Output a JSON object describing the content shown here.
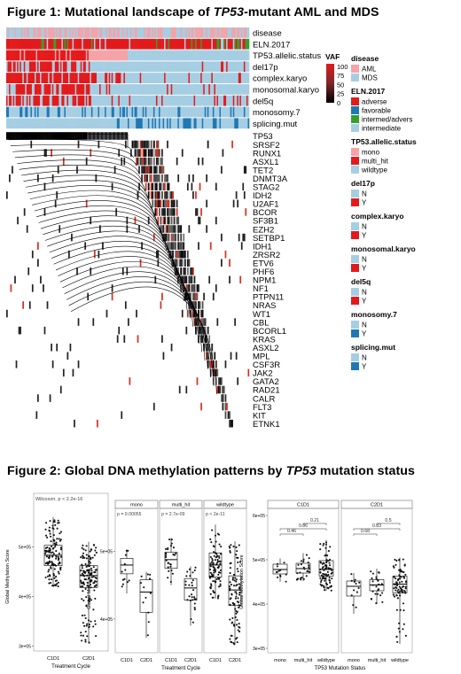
{
  "figure1": {
    "title_prefix": "Figure 1: Mutational landscape of ",
    "title_gene": "TP53",
    "title_suffix": "-mutant AML and MDS",
    "annotation_tracks": [
      "disease",
      "ELN.2017",
      "TP53.allelic.status",
      "del17p",
      "complex.karyo",
      "monosomal.karyo",
      "del5q",
      "monosomy.7",
      "splicing.mut"
    ],
    "genes": [
      "TP53",
      "SRSF2",
      "RUNX1",
      "ASXL1",
      "TET2",
      "DNMT3A",
      "STAG2",
      "IDH2",
      "U2AF1",
      "BCOR",
      "SF3B1",
      "EZH2",
      "SETBP1",
      "IDH1",
      "ZRSR2",
      "ETV6",
      "PHF6",
      "NPM1",
      "NF1",
      "PTPN11",
      "NRAS",
      "WT1",
      "CBL",
      "BCORL1",
      "KRAS",
      "ASXL2",
      "MPL",
      "CSF3R",
      "JAK2",
      "GATA2",
      "RAD21",
      "CALR",
      "FLT3",
      "KIT",
      "ETNK1"
    ],
    "vaf_legend": {
      "title": "VAF",
      "ticks": [
        "100",
        "75",
        "50",
        "25",
        "0"
      ]
    },
    "legends": [
      {
        "title": "disease",
        "items": [
          {
            "label": "AML",
            "color": "#f4a3a8"
          },
          {
            "label": "MDS",
            "color": "#a6cee3"
          }
        ]
      },
      {
        "title": "ELN.2017",
        "items": [
          {
            "label": "adverse",
            "color": "#e31a1c"
          },
          {
            "label": "favorable",
            "color": "#1f78b4"
          },
          {
            "label": "intermed/advers",
            "color": "#33a02c"
          },
          {
            "label": "intermediate",
            "color": "#a6cee3"
          }
        ]
      },
      {
        "title": "TP53.allelic.status",
        "items": [
          {
            "label": "mono",
            "color": "#f4a3a8"
          },
          {
            "label": "multi_hit",
            "color": "#e31a1c"
          },
          {
            "label": "wildtype",
            "color": "#a6cee3"
          }
        ]
      },
      {
        "title": "del17p",
        "items": [
          {
            "label": "N",
            "color": "#a6cee3"
          },
          {
            "label": "Y",
            "color": "#e31a1c"
          }
        ]
      },
      {
        "title": "complex.karyo",
        "items": [
          {
            "label": "N",
            "color": "#a6cee3"
          },
          {
            "label": "Y",
            "color": "#e31a1c"
          }
        ]
      },
      {
        "title": "monosomal.karyo",
        "items": [
          {
            "label": "N",
            "color": "#a6cee3"
          },
          {
            "label": "Y",
            "color": "#e31a1c"
          }
        ]
      },
      {
        "title": "del5q",
        "items": [
          {
            "label": "N",
            "color": "#a6cee3"
          },
          {
            "label": "Y",
            "color": "#e31a1c"
          }
        ]
      },
      {
        "title": "monosomy.7",
        "items": [
          {
            "label": "N",
            "color": "#a6cee3"
          },
          {
            "label": "Y",
            "color": "#1f78b4"
          }
        ]
      },
      {
        "title": "splicing.mut",
        "items": [
          {
            "label": "N",
            "color": "#a6cee3"
          },
          {
            "label": "Y",
            "color": "#1f78b4"
          }
        ]
      }
    ]
  },
  "figure2": {
    "title_prefix": "Figure 2: Global DNA methylation patterns by ",
    "title_gene": "TP53",
    "title_suffix": " mutation status"
  },
  "chart_data": [
    {
      "type": "box",
      "panel": "A",
      "ylabel": "Global Methylation Score",
      "xlabel": "Treatment Cycle",
      "categories": [
        "C1D1",
        "C2D1"
      ],
      "yticks": [
        "3e+05",
        "4e+05",
        "5e+05"
      ],
      "ylim": [
        290000,
        590000
      ],
      "annotation": "Wilcoxon, p < 2.2e-16",
      "boxes": [
        {
          "category": "C1D1",
          "min": 420000,
          "q1": 462000,
          "median": 483000,
          "q3": 503000,
          "max": 560000
        },
        {
          "category": "C2D1",
          "min": 305000,
          "q1": 418000,
          "median": 442000,
          "q3": 462000,
          "max": 510000
        }
      ]
    },
    {
      "type": "box",
      "panel": "B",
      "ylabel": "Global Methylation Score",
      "xlabel": "Treatment Cycle",
      "facets": [
        "mono",
        "multi_hit",
        "wildtype"
      ],
      "categories": [
        "C1D1",
        "C2D1"
      ],
      "yticks": [
        "4e+05",
        "5e+05"
      ],
      "ylim": [
        350000,
        560000
      ],
      "annotations": [
        "p = 0.00055",
        "p = 2.7e-09",
        "p < 2e-11"
      ],
      "boxes": [
        {
          "facet": "mono",
          "category": "C1D1",
          "min": 438000,
          "q1": 467000,
          "median": 480000,
          "q3": 490000,
          "max": 503000
        },
        {
          "facet": "mono",
          "category": "C2D1",
          "min": 372000,
          "q1": 410000,
          "median": 440000,
          "q3": 458000,
          "max": 470000
        },
        {
          "facet": "multi_hit",
          "category": "C1D1",
          "min": 450000,
          "q1": 475000,
          "median": 488000,
          "q3": 499000,
          "max": 520000
        },
        {
          "facet": "multi_hit",
          "category": "C2D1",
          "min": 390000,
          "q1": 428000,
          "median": 446000,
          "q3": 460000,
          "max": 478000
        },
        {
          "facet": "wildtype",
          "category": "C1D1",
          "min": 430000,
          "q1": 462000,
          "median": 480000,
          "q3": 498000,
          "max": 540000
        },
        {
          "facet": "wildtype",
          "category": "C2D1",
          "min": 362000,
          "q1": 420000,
          "median": 443000,
          "q3": 464000,
          "max": 515000
        }
      ]
    },
    {
      "type": "box",
      "panel": "C",
      "ylabel": "Global Methylation Score",
      "xlabel": "TP53 Mutation Status",
      "facets": [
        "C1D1",
        "C2D1"
      ],
      "categories": [
        "mono",
        "multi_hit",
        "wildtype"
      ],
      "yticks": [
        "3e+05",
        "4e+05",
        "5e+05",
        "6e+05"
      ],
      "ylim": [
        290000,
        610000
      ],
      "comparisons": [
        {
          "facet": "C1D1",
          "pairs": [
            "0.46",
            "0.86",
            "0.21"
          ]
        },
        {
          "facet": "C2D1",
          "pairs": [
            "0.68",
            "0.83",
            "0.5"
          ]
        }
      ],
      "boxes": [
        {
          "facet": "C1D1",
          "category": "mono",
          "min": 450000,
          "q1": 468000,
          "median": 478000,
          "q3": 490000,
          "max": 503000
        },
        {
          "facet": "C1D1",
          "category": "multi_hit",
          "min": 452000,
          "q1": 470000,
          "median": 480000,
          "q3": 492000,
          "max": 515000
        },
        {
          "facet": "C1D1",
          "category": "wildtype",
          "min": 430000,
          "q1": 463000,
          "median": 478000,
          "q3": 498000,
          "max": 545000
        },
        {
          "facet": "C2D1",
          "category": "mono",
          "min": 378000,
          "q1": 418000,
          "median": 440000,
          "q3": 452000,
          "max": 470000
        },
        {
          "facet": "C2D1",
          "category": "multi_hit",
          "min": 400000,
          "q1": 430000,
          "median": 443000,
          "q3": 455000,
          "max": 480000
        },
        {
          "facet": "C2D1",
          "category": "wildtype",
          "min": 310000,
          "q1": 425000,
          "median": 445000,
          "q3": 463000,
          "max": 505000
        }
      ]
    }
  ]
}
